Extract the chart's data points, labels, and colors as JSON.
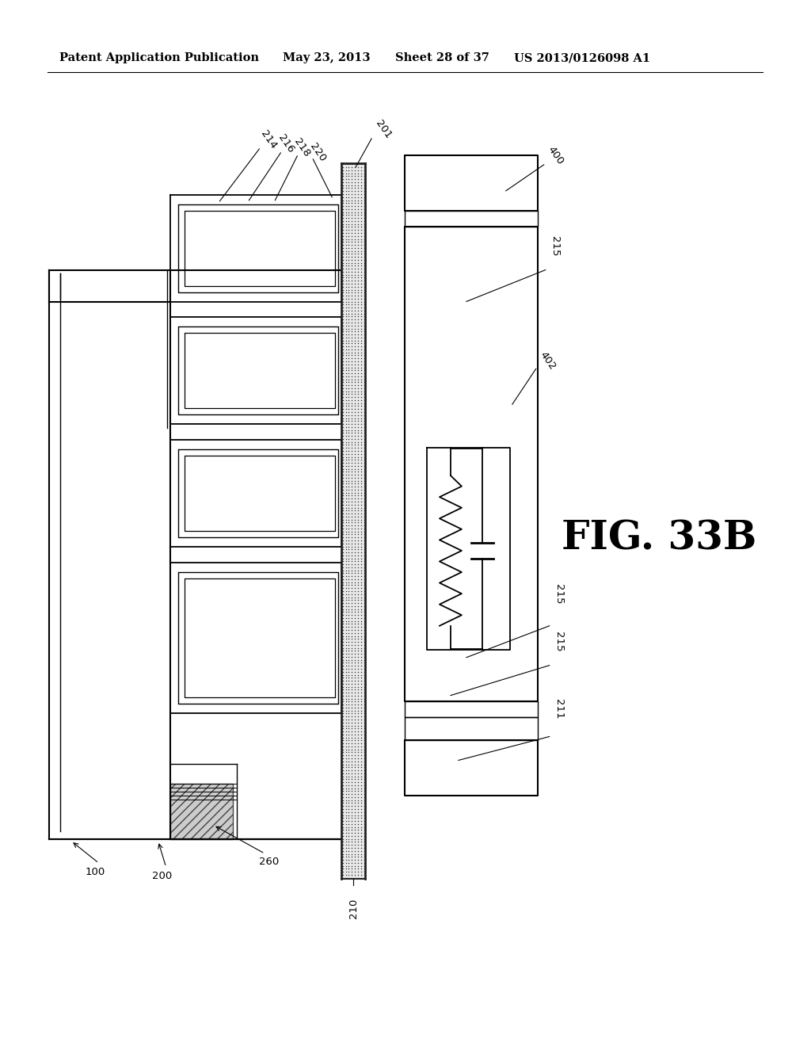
{
  "title_line1": "Patent Application Publication",
  "title_date": "May 23, 2013",
  "title_sheet": "Sheet 28 of 37",
  "title_patent": "US 2013/0126098 A1",
  "fig_label": "FIG. 33B",
  "background_color": "#ffffff",
  "line_color": "#000000"
}
